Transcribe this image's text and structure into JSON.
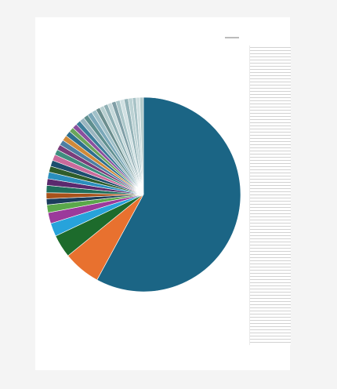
{
  "chart_data": {
    "type": "pie",
    "values": [
      57.7,
      6.2,
      3.8,
      2.2,
      1.8,
      1.3,
      1.0,
      1.0,
      1.2,
      1.1,
      1.1,
      1.0,
      1.0,
      1.0,
      0.9,
      0.9,
      0.9,
      0.9,
      0.9,
      0.8,
      0.8,
      0.8,
      0.8,
      0.8,
      0.8,
      0.8,
      0.7,
      0.7,
      0.7,
      0.7,
      0.7,
      0.7,
      0.7,
      0.7,
      0.7,
      0.6,
      0.6,
      0.6
    ],
    "colors": [
      "#1b6585",
      "#e8712f",
      "#1d6b2c",
      "#27a3db",
      "#9b3a9b",
      "#5aa84a",
      "#1b3d5c",
      "#a8521b",
      "#1f6f5c",
      "#5b2a6e",
      "#2a8fbd",
      "#2f5d2a",
      "#1d4e6e",
      "#c96a9b",
      "#3e8e7e",
      "#7a3d7a",
      "#4d7fa3",
      "#d08a3a",
      "#2e6f8e",
      "#6aa55c",
      "#8a4f9e",
      "#3c7d9a",
      "#9ab5c0",
      "#5f8f8f",
      "#7aa7b8",
      "#a0c0c8",
      "#6b8e8e",
      "#b7cfd0",
      "#8fb0b5",
      "#c5d8da",
      "#7f9ea6",
      "#aac6c9",
      "#d0e0e2",
      "#94b3b8",
      "#bcd2d4",
      "#a7c2c6",
      "#cfdfe0",
      "#b3caca"
    ],
    "start": "top",
    "direction": "clockwise"
  }
}
